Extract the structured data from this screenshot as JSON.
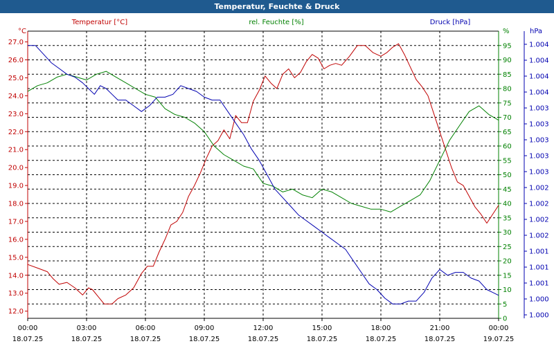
{
  "window": {
    "title": "Temperatur, Feuchte & Druck"
  },
  "colors": {
    "temp": "#c00000",
    "hum": "#008000",
    "press": "#0000b0",
    "titlebar": "#1f5a8f",
    "grid": "#000000"
  },
  "chart_data": {
    "type": "line",
    "title": "Temperatur, Feuchte & Druck",
    "x_labels": [
      {
        "time": "00:00",
        "date": "18.07.25"
      },
      {
        "time": "03:00",
        "date": "18.07.25"
      },
      {
        "time": "06:00",
        "date": "18.07.25"
      },
      {
        "time": "09:00",
        "date": "18.07.25"
      },
      {
        "time": "12:00",
        "date": "18.07.25"
      },
      {
        "time": "15:00",
        "date": "18.07.25"
      },
      {
        "time": "18:00",
        "date": "18.07.25"
      },
      {
        "time": "21:00",
        "date": "18.07.25"
      },
      {
        "time": "00:00",
        "date": "19.07.25"
      }
    ],
    "x_range_hours": [
      0,
      24
    ],
    "grid": true,
    "axes": {
      "temp": {
        "label": "Temperatur [°C]",
        "unit": "°C",
        "range": [
          11.6,
          27.6
        ],
        "ticks": [
          "27.0",
          "26.0",
          "25.0",
          "24.0",
          "23.0",
          "22.0",
          "21.0",
          "20.0",
          "19.0",
          "18.0",
          "17.0",
          "16.0",
          "15.0",
          "14.0",
          "13.0",
          "12.0"
        ]
      },
      "hum": {
        "label": "rel. Feuchte [%]",
        "unit": "%",
        "range": [
          0,
          100
        ],
        "ticks": [
          "95",
          "90",
          "85",
          "80",
          "75",
          "70",
          "65",
          "60",
          "55",
          "50",
          "45",
          "40",
          "35",
          "30",
          "25",
          "20",
          "15",
          "10",
          "5",
          "0"
        ]
      },
      "press": {
        "label": "Druck [hPa]",
        "unit": "hPa",
        "ticks": [
          "1.004",
          "1.004",
          "1.004",
          "1.004",
          "1.003",
          "1.003",
          "1.003",
          "1.003",
          "1.003",
          "1.002",
          "1.002",
          "1.002",
          "1.002",
          "1.001",
          "1.001",
          "1.001",
          "1.000",
          "1.000"
        ]
      }
    },
    "series": [
      {
        "name": "Temperatur [°C]",
        "axis": "temp",
        "points": [
          [
            0,
            14.6
          ],
          [
            0.5,
            14.4
          ],
          [
            1,
            14.2
          ],
          [
            1.3,
            13.8
          ],
          [
            1.6,
            13.5
          ],
          [
            2,
            13.6
          ],
          [
            2.4,
            13.3
          ],
          [
            2.8,
            12.9
          ],
          [
            3.1,
            13.3
          ],
          [
            3.3,
            13.2
          ],
          [
            3.6,
            12.8
          ],
          [
            3.9,
            12.4
          ],
          [
            4.3,
            12.4
          ],
          [
            4.6,
            12.7
          ],
          [
            5,
            12.9
          ],
          [
            5.4,
            13.3
          ],
          [
            5.8,
            14.1
          ],
          [
            6.1,
            14.5
          ],
          [
            6.4,
            14.5
          ],
          [
            6.7,
            15.3
          ],
          [
            7,
            16.0
          ],
          [
            7.3,
            16.8
          ],
          [
            7.6,
            17.0
          ],
          [
            7.9,
            17.5
          ],
          [
            8.2,
            18.4
          ],
          [
            8.5,
            19.0
          ],
          [
            8.8,
            19.7
          ],
          [
            9.1,
            20.5
          ],
          [
            9.4,
            21.2
          ],
          [
            9.7,
            21.5
          ],
          [
            10,
            22.1
          ],
          [
            10.3,
            21.6
          ],
          [
            10.6,
            22.9
          ],
          [
            10.9,
            22.5
          ],
          [
            11.2,
            22.5
          ],
          [
            11.5,
            23.7
          ],
          [
            11.8,
            24.3
          ],
          [
            12.1,
            25.1
          ],
          [
            12.4,
            24.7
          ],
          [
            12.7,
            24.4
          ],
          [
            13,
            25.2
          ],
          [
            13.3,
            25.5
          ],
          [
            13.6,
            25.0
          ],
          [
            13.9,
            25.3
          ],
          [
            14.2,
            25.9
          ],
          [
            14.5,
            26.3
          ],
          [
            14.8,
            26.1
          ],
          [
            15.1,
            25.5
          ],
          [
            15.4,
            25.7
          ],
          [
            15.7,
            25.8
          ],
          [
            16,
            25.7
          ],
          [
            16.4,
            26.2
          ],
          [
            16.8,
            26.8
          ],
          [
            17.2,
            26.8
          ],
          [
            17.6,
            26.4
          ],
          [
            18,
            26.2
          ],
          [
            18.3,
            26.4
          ],
          [
            18.6,
            26.7
          ],
          [
            18.9,
            26.9
          ],
          [
            19.2,
            26.3
          ],
          [
            19.5,
            25.6
          ],
          [
            19.8,
            24.9
          ],
          [
            20.1,
            24.5
          ],
          [
            20.4,
            24.0
          ],
          [
            20.7,
            23.0
          ],
          [
            21,
            22.0
          ],
          [
            21.3,
            21.0
          ],
          [
            21.6,
            20.0
          ],
          [
            21.9,
            19.2
          ],
          [
            22.2,
            19.0
          ],
          [
            22.5,
            18.4
          ],
          [
            22.8,
            17.8
          ],
          [
            23.1,
            17.4
          ],
          [
            23.4,
            16.9
          ],
          [
            23.7,
            17.4
          ],
          [
            24,
            17.9
          ]
        ]
      },
      {
        "name": "rel. Feuchte [%]",
        "axis": "hum",
        "points": [
          [
            0,
            79
          ],
          [
            0.5,
            81
          ],
          [
            1,
            82
          ],
          [
            1.5,
            84
          ],
          [
            2,
            85
          ],
          [
            2.5,
            84
          ],
          [
            3,
            83
          ],
          [
            3.5,
            85
          ],
          [
            4,
            86
          ],
          [
            4.5,
            84
          ],
          [
            5,
            82
          ],
          [
            5.5,
            80
          ],
          [
            6,
            78
          ],
          [
            6.5,
            77
          ],
          [
            7,
            73
          ],
          [
            7.5,
            71
          ],
          [
            8,
            70
          ],
          [
            8.5,
            68
          ],
          [
            9,
            65
          ],
          [
            9.5,
            60
          ],
          [
            10,
            57
          ],
          [
            10.5,
            55
          ],
          [
            11,
            53
          ],
          [
            11.5,
            52
          ],
          [
            12,
            47
          ],
          [
            12.5,
            46
          ],
          [
            13,
            44
          ],
          [
            13.5,
            45
          ],
          [
            14,
            43
          ],
          [
            14.5,
            42
          ],
          [
            15,
            45
          ],
          [
            15.5,
            44
          ],
          [
            16,
            42
          ],
          [
            16.5,
            40
          ],
          [
            17,
            39
          ],
          [
            17.5,
            38
          ],
          [
            18,
            38
          ],
          [
            18.5,
            37
          ],
          [
            19,
            39
          ],
          [
            19.5,
            41
          ],
          [
            20,
            43
          ],
          [
            20.5,
            48
          ],
          [
            21,
            55
          ],
          [
            21.5,
            62
          ],
          [
            22,
            67
          ],
          [
            22.5,
            72
          ],
          [
            23,
            74
          ],
          [
            23.5,
            71
          ],
          [
            24,
            69
          ]
        ]
      },
      {
        "name": "Druck [hPa]",
        "axis": "press",
        "points": [
          [
            0,
            95
          ],
          [
            0.4,
            95
          ],
          [
            0.8,
            92
          ],
          [
            1.2,
            89
          ],
          [
            1.6,
            87
          ],
          [
            2,
            85
          ],
          [
            2.4,
            84
          ],
          [
            2.8,
            82
          ],
          [
            3.1,
            80
          ],
          [
            3.4,
            78
          ],
          [
            3.7,
            81
          ],
          [
            4,
            80
          ],
          [
            4.3,
            78
          ],
          [
            4.6,
            76
          ],
          [
            5,
            76
          ],
          [
            5.4,
            74
          ],
          [
            5.8,
            72
          ],
          [
            6.2,
            74
          ],
          [
            6.6,
            77
          ],
          [
            7,
            77
          ],
          [
            7.4,
            78
          ],
          [
            7.8,
            81
          ],
          [
            8.2,
            80
          ],
          [
            8.6,
            79
          ],
          [
            9,
            77
          ],
          [
            9.4,
            76
          ],
          [
            9.8,
            76
          ],
          [
            10.2,
            72
          ],
          [
            10.6,
            68
          ],
          [
            11,
            64
          ],
          [
            11.4,
            59
          ],
          [
            11.8,
            55
          ],
          [
            12.2,
            50
          ],
          [
            12.6,
            45
          ],
          [
            13,
            42
          ],
          [
            13.4,
            39
          ],
          [
            13.8,
            36
          ],
          [
            14.2,
            34
          ],
          [
            14.6,
            32
          ],
          [
            15,
            30
          ],
          [
            15.4,
            28
          ],
          [
            15.8,
            26
          ],
          [
            16.2,
            24
          ],
          [
            16.6,
            20
          ],
          [
            17,
            16
          ],
          [
            17.4,
            12
          ],
          [
            17.8,
            10
          ],
          [
            18.2,
            7
          ],
          [
            18.6,
            5
          ],
          [
            19,
            5
          ],
          [
            19.4,
            6
          ],
          [
            19.8,
            6
          ],
          [
            20.2,
            9
          ],
          [
            20.6,
            14
          ],
          [
            21,
            17
          ],
          [
            21.4,
            15
          ],
          [
            21.8,
            16
          ],
          [
            22.2,
            16
          ],
          [
            22.6,
            14
          ],
          [
            23,
            13
          ],
          [
            23.4,
            10
          ],
          [
            23.7,
            9
          ],
          [
            24,
            8
          ]
        ]
      }
    ]
  }
}
